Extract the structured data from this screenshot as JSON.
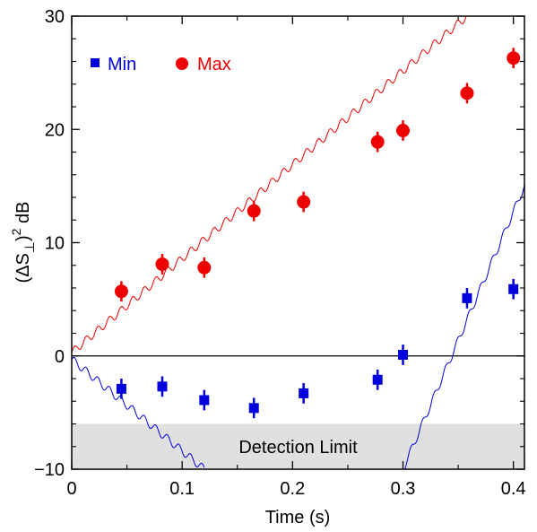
{
  "chart_data": {
    "type": "scatter",
    "xlabel": "Time  (s)",
    "ylabel_parts": [
      "(ΔS",
      "⊥",
      ")",
      "2",
      " dB"
    ],
    "xlim": [
      0,
      0.41
    ],
    "ylim": [
      -10,
      30
    ],
    "x_ticks": [
      0,
      0.1,
      0.2,
      0.3,
      0.4
    ],
    "x_tick_labels": [
      "0",
      "0.1",
      "0.2",
      "0.3",
      "0.4"
    ],
    "y_ticks": [
      -10,
      0,
      10,
      20,
      30
    ],
    "y_tick_labels": [
      "−10",
      "0",
      "10",
      "20",
      "30"
    ],
    "reference_line_y": 0,
    "shaded_region": {
      "y_from": -10,
      "y_to": -6,
      "label": "Detection  Limit",
      "color": "#e0e0e0"
    },
    "legend_placement": "top-left",
    "series": [
      {
        "name": "Min",
        "marker": "square",
        "color": "#0000dd",
        "x": [
          0.045,
          0.082,
          0.12,
          0.165,
          0.21,
          0.277,
          0.3,
          0.358,
          0.4
        ],
        "y": [
          -2.9,
          -2.7,
          -3.9,
          -4.6,
          -3.3,
          -2.1,
          0.1,
          5.1,
          5.9
        ],
        "err": [
          0.9,
          0.9,
          0.9,
          0.9,
          0.9,
          0.9,
          0.9,
          0.9,
          0.9
        ]
      },
      {
        "name": "Max",
        "marker": "circle",
        "color": "#ee0000",
        "x": [
          0.045,
          0.082,
          0.12,
          0.165,
          0.21,
          0.277,
          0.3,
          0.358,
          0.4
        ],
        "y": [
          5.7,
          8.1,
          7.8,
          12.8,
          13.6,
          18.9,
          19.9,
          23.2,
          26.3
        ],
        "err": [
          0.9,
          0.9,
          0.9,
          0.9,
          0.9,
          0.9,
          0.9,
          0.9,
          0.9
        ]
      }
    ],
    "curves": [
      {
        "name": "max-theory",
        "color": "#ee0000",
        "x": [
          0,
          0.358
        ],
        "y": [
          0.3,
          30
        ],
        "ripple": 0.35
      },
      {
        "name": "min-theory-left",
        "color": "#0000dd",
        "x": [
          0,
          0.12
        ],
        "y": [
          -0.3,
          -10
        ],
        "ripple": 0.35
      },
      {
        "name": "min-theory-right",
        "color": "#0000dd",
        "x": [
          0.3,
          0.41
        ],
        "y": [
          -10,
          15
        ],
        "ripple": 0.35
      }
    ]
  }
}
